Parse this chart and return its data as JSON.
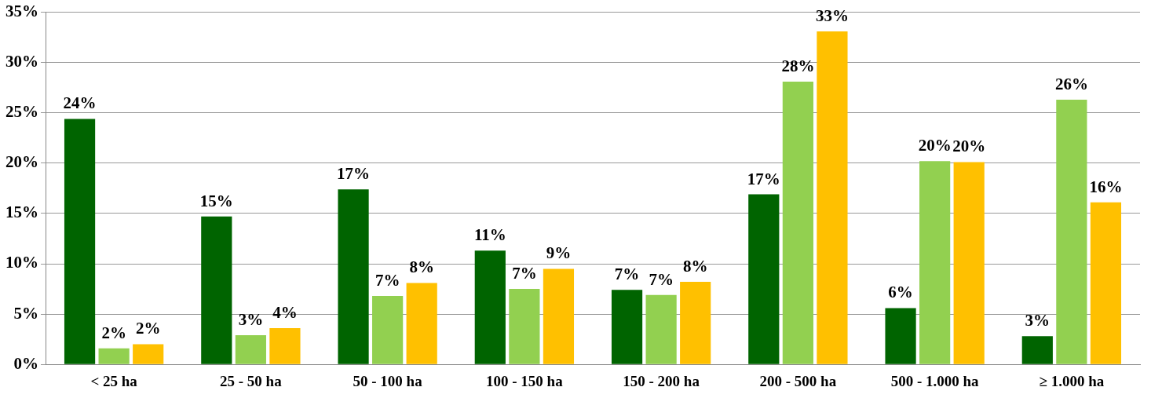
{
  "chart_data": {
    "type": "bar",
    "categories": [
      "< 25 ha",
      "25 - 50 ha",
      "50 - 100 ha",
      "100 - 150 ha",
      "150 - 200 ha",
      "200 - 500 ha",
      "500 - 1.000 ha",
      "≥ 1.000 ha"
    ],
    "series": [
      {
        "color": "#006400",
        "values": [
          24.4,
          14.7,
          17.4,
          11.3,
          7.4,
          16.9,
          5.6,
          2.8
        ],
        "value_labels": [
          "24%",
          "15%",
          "17%",
          "11%",
          "7%",
          "17%",
          "6%",
          "3%"
        ]
      },
      {
        "color": "#92d050",
        "values": [
          1.6,
          2.9,
          6.8,
          7.5,
          6.9,
          28.1,
          20.2,
          26.3
        ],
        "value_labels": [
          "2%",
          "3%",
          "7%",
          "7%",
          "7%",
          "28%",
          "20%",
          "26%"
        ]
      },
      {
        "color": "#ffc000",
        "values": [
          2.0,
          3.6,
          8.1,
          9.5,
          8.2,
          33.1,
          20.1,
          16.1
        ],
        "value_labels": [
          "2%",
          "4%",
          "8%",
          "9%",
          "8%",
          "33%",
          "20%",
          "16%"
        ]
      }
    ],
    "ylim": [
      0,
      35
    ],
    "yticks": [
      {
        "value": 0,
        "label": "0%"
      },
      {
        "value": 5,
        "label": "5%"
      },
      {
        "value": 10,
        "label": "10%"
      },
      {
        "value": 15,
        "label": "15%"
      },
      {
        "value": 20,
        "label": "20%"
      },
      {
        "value": 25,
        "label": "25%"
      },
      {
        "value": 30,
        "label": "30%"
      },
      {
        "value": 35,
        "label": "35%"
      }
    ],
    "grid": "y",
    "legend": false
  }
}
